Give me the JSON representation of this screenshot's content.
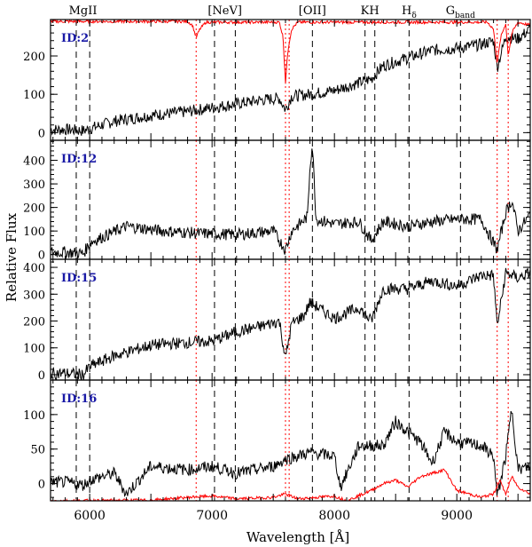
{
  "chart_data": {
    "type": "line",
    "xlabel": "Wavelength [Å]",
    "ylabel": "Relative Flux",
    "xlim": [
      5680,
      9600
    ],
    "x_ticks": [
      6000,
      7000,
      8000,
      9000
    ],
    "feature_lines": [
      {
        "label": "MgII",
        "wavelengths": [
          5890,
          6000
        ]
      },
      {
        "label": "[NeV]",
        "wavelengths": [
          7020,
          7190
        ]
      },
      {
        "label": "[OII]",
        "wavelengths": [
          7820
        ]
      },
      {
        "label": "KH",
        "wavelengths": [
          8250,
          8330
        ]
      },
      {
        "label": "Hδ",
        "label_main": "H",
        "label_sub": "δ",
        "wavelengths": [
          8610
        ]
      },
      {
        "label": "Gband",
        "label_main": "G",
        "label_sub": "band",
        "wavelengths": [
          9030
        ]
      }
    ],
    "sky_lines": [
      6870,
      7600,
      7630,
      9330,
      9420
    ],
    "panels": [
      {
        "id": "ID:2",
        "ylim": [
          -20,
          295
        ],
        "yticks": [
          0,
          100,
          200
        ],
        "series": [
          {
            "color": "#000000",
            "x": [
              5680,
              5800,
              5950,
              6000,
              6200,
              6500,
              6800,
              7000,
              7200,
              7400,
              7550,
              7600,
              7650,
              7800,
              8000,
              8200,
              8300,
              8400,
              8600,
              8800,
              9000,
              9200,
              9300,
              9330,
              9400,
              9500,
              9600
            ],
            "y": [
              8,
              8,
              5,
              10,
              30,
              45,
              55,
              65,
              75,
              85,
              90,
              60,
              95,
              100,
              110,
              130,
              140,
              175,
              195,
              215,
              220,
              230,
              240,
              170,
              250,
              245,
              270
            ]
          },
          {
            "color": "#ff0000",
            "x": [
              5680,
              6800,
              6840,
              6870,
              6900,
              6950,
              7550,
              7580,
              7600,
              7620,
              7650,
              7700,
              9250,
              9300,
              9330,
              9360,
              9400,
              9420,
              9450,
              9500,
              9600
            ],
            "y": [
              290,
              290,
              280,
              248,
              270,
              288,
              288,
              250,
              130,
              215,
              270,
              288,
              288,
              270,
              180,
              250,
              285,
              200,
              260,
              288,
              280
            ]
          }
        ]
      },
      {
        "id": "ID:12",
        "ylim": [
          -20,
          485
        ],
        "yticks": [
          0,
          100,
          200,
          300,
          400
        ],
        "series": [
          {
            "color": "#000000",
            "x": [
              5680,
              5800,
              5950,
              6000,
              6300,
              6600,
              6900,
              7200,
              7500,
              7600,
              7650,
              7780,
              7800,
              7820,
              7850,
              8000,
              8200,
              8300,
              8400,
              8600,
              8800,
              9000,
              9200,
              9330,
              9400,
              9450,
              9500,
              9600
            ],
            "y": [
              10,
              10,
              5,
              50,
              120,
              100,
              90,
              85,
              100,
              20,
              100,
              160,
              380,
              470,
              150,
              130,
              140,
              60,
              140,
              120,
              140,
              150,
              150,
              20,
              180,
              230,
              100,
              170
            ]
          }
        ]
      },
      {
        "id": "ID:15",
        "ylim": [
          -20,
          430
        ],
        "yticks": [
          0,
          100,
          200,
          300,
          400
        ],
        "series": [
          {
            "color": "#000000",
            "x": [
              5680,
              5800,
              5950,
              6000,
              6200,
              6500,
              6800,
              7000,
              7200,
              7400,
              7550,
              7600,
              7650,
              7750,
              7800,
              8000,
              8200,
              8300,
              8400,
              8600,
              8800,
              9000,
              9200,
              9300,
              9330,
              9400,
              9500,
              9600
            ],
            "y": [
              5,
              5,
              0,
              30,
              70,
              110,
              120,
              125,
              160,
              180,
              200,
              60,
              190,
              220,
              270,
              210,
              250,
              200,
              320,
              320,
              350,
              330,
              370,
              370,
              180,
              380,
              360,
              380
            ]
          }
        ]
      },
      {
        "id": "ID:16",
        "ylim": [
          -25,
          150
        ],
        "yticks": [
          0,
          50,
          100
        ],
        "series": [
          {
            "color": "#000000",
            "x": [
              5680,
              5800,
              5950,
              6000,
              6200,
              6300,
              6500,
              6800,
              7000,
              7200,
              7500,
              7600,
              7800,
              8000,
              8050,
              8200,
              8400,
              8500,
              8700,
              8800,
              8900,
              9000,
              9200,
              9300,
              9330,
              9400,
              9450,
              9500,
              9600
            ],
            "y": [
              2,
              2,
              -2,
              5,
              15,
              -15,
              25,
              20,
              25,
              15,
              25,
              35,
              45,
              40,
              -5,
              55,
              55,
              90,
              60,
              30,
              75,
              60,
              55,
              40,
              -20,
              40,
              110,
              20,
              25
            ]
          },
          {
            "color": "#ff0000",
            "x": [
              5680,
              6500,
              6800,
              7000,
              7200,
              7500,
              7600,
              7700,
              8000,
              8100,
              8300,
              8400,
              8500,
              8600,
              8700,
              8800,
              8900,
              9000,
              9200,
              9300,
              9350,
              9400,
              9450,
              9500,
              9600
            ],
            "y": [
              -25,
              -24,
              -20,
              -18,
              -22,
              -20,
              -15,
              -22,
              -18,
              -25,
              -10,
              0,
              5,
              -5,
              10,
              15,
              20,
              -10,
              -20,
              -15,
              5,
              -15,
              10,
              -5,
              -15
            ]
          }
        ]
      }
    ]
  }
}
